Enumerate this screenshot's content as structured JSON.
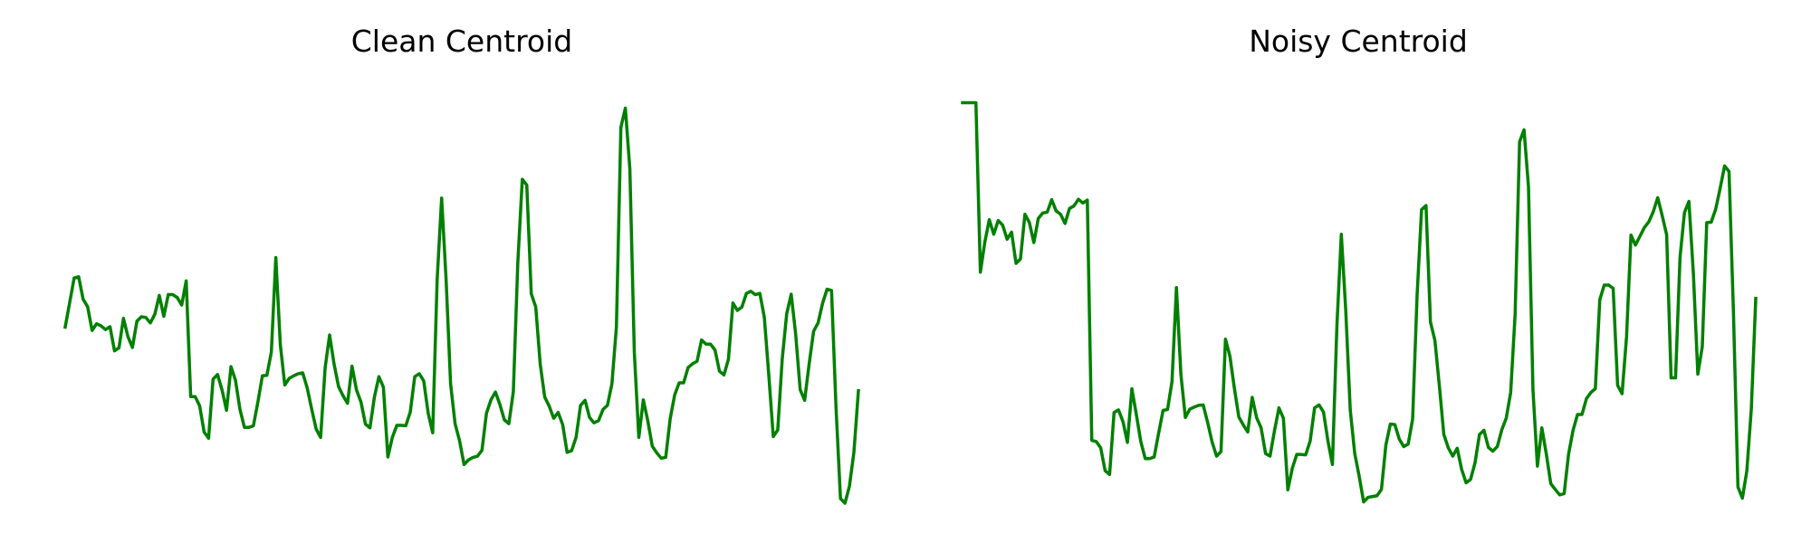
{
  "figure": {
    "line_color": "#008000",
    "background": "#ffffff"
  },
  "chart_data": [
    {
      "type": "line",
      "title": "Clean Centroid",
      "xlabel": "",
      "ylabel": "",
      "grid": false,
      "axes_visible": false,
      "ylim": [
        0,
        100
      ],
      "series": [
        {
          "values": [
            42.3,
            48.2,
            54.1,
            54.4,
            49.0,
            47.2,
            41.5,
            43.1,
            42.6,
            41.7,
            42.4,
            36.6,
            37.3,
            44.4,
            40.0,
            37.4,
            43.7,
            44.8,
            44.6,
            43.3,
            45.4,
            49.9,
            44.9,
            50.1,
            50.1,
            49.4,
            47.6,
            53.4,
            25.6,
            25.6,
            23.4,
            17.1,
            15.6,
            29.8,
            30.9,
            27.2,
            22.3,
            32.8,
            29.5,
            22.5,
            18.2,
            18.2,
            18.6,
            24.3,
            30.6,
            30.7,
            36.3,
            59.0,
            38.1,
            28.4,
            30.0,
            30.6,
            31.1,
            31.3,
            27.7,
            22.6,
            17.8,
            15.8,
            32.5,
            40.4,
            33.4,
            28.0,
            25.8,
            24.0,
            32.9,
            27.2,
            24.3,
            19.0,
            18.1,
            25.5,
            30.4,
            27.9,
            11.1,
            15.8,
            18.7,
            18.7,
            18.6,
            21.9,
            30.4,
            31.1,
            29.4,
            21.6,
            16.9,
            53.7,
            73.3,
            53.6,
            28.6,
            19.1,
            15.0,
            9.3,
            10.4,
            11.0,
            11.3,
            12.7,
            21.6,
            24.8,
            26.7,
            23.7,
            20.0,
            19.1,
            26.8,
            57.8,
            77.8,
            76.4,
            50.3,
            47.1,
            33.4,
            25.5,
            23.3,
            20.4,
            21.8,
            18.9,
            12.2,
            12.6,
            15.8,
            23.5,
            24.7,
            20.6,
            19.3,
            19.8,
            22.5,
            23.5,
            28.7,
            42.4,
            90.3,
            94.9,
            80.3,
            36.1,
            15.8,
            24.8,
            19.8,
            13.7,
            12.1,
            10.8,
            11.0,
            20.3,
            26.0,
            28.9,
            28.9,
            32.6,
            33.5,
            34.1,
            39.2,
            38.2,
            38.2,
            36.8,
            31.7,
            30.8,
            34.6,
            48.1,
            46.3,
            47.1,
            50.4,
            50.9,
            50.1,
            50.4,
            44.7,
            30.8,
            16.0,
            17.6,
            34.6,
            45.5,
            50.2,
            40.6,
            27.3,
            24.7,
            33.4,
            41.3,
            43.3,
            48.0,
            51.4,
            51.1,
            23.1,
            1.1,
            0.0,
            4.1,
            12.3,
            27.0
          ]
        }
      ]
    },
    {
      "type": "line",
      "title": "Noisy Centroid",
      "xlabel": "",
      "ylabel": "",
      "grid": false,
      "axes_visible": false,
      "ylim": [
        0,
        100
      ],
      "series": [
        {
          "values": [
            96.2,
            96.2,
            96.2,
            96.2,
            55.5,
            62.7,
            68.1,
            64.6,
            67.9,
            66.8,
            63.4,
            65.1,
            57.6,
            58.7,
            69.4,
            67.4,
            62.6,
            68.4,
            69.7,
            69.9,
            72.9,
            70.2,
            69.4,
            67.2,
            70.8,
            71.4,
            73.0,
            72.1,
            72.8,
            15.1,
            14.8,
            13.3,
            7.8,
            6.9,
            21.8,
            22.4,
            19.6,
            14.6,
            27.5,
            21.3,
            14.8,
            10.7,
            10.7,
            11.1,
            16.8,
            22.3,
            22.5,
            29.2,
            51.8,
            30.9,
            20.6,
            22.6,
            23.1,
            23.5,
            23.6,
            19.4,
            14.7,
            11.3,
            12.4,
            39.4,
            35.3,
            27.6,
            20.7,
            18.8,
            17.1,
            25.4,
            20.5,
            18.1,
            11.9,
            11.3,
            17.4,
            22.9,
            20.4,
            3.2,
            8.4,
            11.7,
            11.7,
            11.6,
            14.9,
            22.9,
            23.6,
            21.9,
            14.9,
            9.3,
            42.4,
            64.6,
            46.1,
            22.4,
            12.0,
            6.5,
            0.3,
            1.4,
            1.6,
            1.8,
            3.3,
            14.0,
            19.0,
            18.9,
            15.4,
            13.6,
            14.2,
            20.2,
            49.9,
            70.5,
            71.5,
            43.5,
            39.1,
            28.2,
            16.5,
            13.3,
            11.3,
            13.2,
            8.1,
            4.9,
            5.7,
            9.7,
            16.5,
            17.5,
            13.4,
            12.5,
            13.6,
            17.6,
            20.4,
            26.6,
            45.4,
            86.8,
            89.7,
            76.0,
            27.3,
            8.9,
            18.1,
            11.8,
            4.7,
            3.3,
            2.0,
            2.3,
            11.8,
            17.5,
            21.3,
            21.3,
            25.1,
            26.6,
            27.5,
            48.9,
            52.4,
            52.4,
            51.6,
            28.3,
            26.3,
            39.9,
            64.4,
            62.0,
            64.1,
            66.2,
            67.6,
            70.0,
            73.4,
            69.1,
            64.5,
            30.1,
            30.1,
            59.0,
            69.8,
            72.5,
            55.2,
            31.0,
            37.6,
            67.4,
            67.5,
            70.6,
            75.6,
            81.0,
            79.7,
            45.6,
            3.9,
            1.2,
            7.8,
            22.6,
            49.2
          ]
        }
      ]
    }
  ]
}
